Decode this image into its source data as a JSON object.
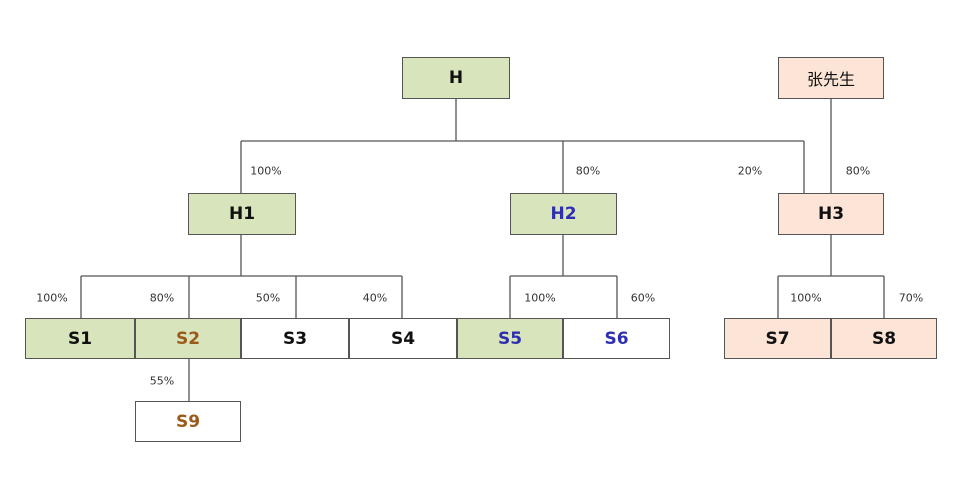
{
  "colors": {
    "green": "#d8e4bc",
    "peach": "#fce4d6",
    "white": "#ffffff",
    "brown": "#9c5a1a",
    "blue": "#2e2eb0",
    "black": "#111111",
    "line": "#555555"
  },
  "nodes": [
    {
      "id": "H",
      "label": "H",
      "fill": "green",
      "text": "black"
    },
    {
      "id": "Zhang",
      "label": "张先生",
      "fill": "peach",
      "text": "black"
    },
    {
      "id": "H1",
      "label": "H1",
      "fill": "green",
      "text": "black"
    },
    {
      "id": "H2",
      "label": "H2",
      "fill": "green",
      "text": "blue"
    },
    {
      "id": "H3",
      "label": "H3",
      "fill": "peach",
      "text": "black"
    },
    {
      "id": "S1",
      "label": "S1",
      "fill": "green",
      "text": "black"
    },
    {
      "id": "S2",
      "label": "S2",
      "fill": "green",
      "text": "brown"
    },
    {
      "id": "S3",
      "label": "S3",
      "fill": "white",
      "text": "black"
    },
    {
      "id": "S4",
      "label": "S4",
      "fill": "white",
      "text": "black"
    },
    {
      "id": "S5",
      "label": "S5",
      "fill": "green",
      "text": "blue"
    },
    {
      "id": "S6",
      "label": "S6",
      "fill": "white",
      "text": "blue"
    },
    {
      "id": "S7",
      "label": "S7",
      "fill": "peach",
      "text": "black"
    },
    {
      "id": "S8",
      "label": "S8",
      "fill": "peach",
      "text": "black"
    },
    {
      "id": "S9",
      "label": "S9",
      "fill": "white",
      "text": "brown"
    }
  ],
  "edges": [
    {
      "from": "H",
      "to": "H1",
      "label": "100%"
    },
    {
      "from": "H",
      "to": "H2",
      "label": "80%"
    },
    {
      "from": "H",
      "to": "H3",
      "label": "20%"
    },
    {
      "from": "Zhang",
      "to": "H3",
      "label": "80%"
    },
    {
      "from": "H1",
      "to": "S1",
      "label": "100%"
    },
    {
      "from": "H1",
      "to": "S2",
      "label": "80%"
    },
    {
      "from": "H1",
      "to": "S3",
      "label": "50%"
    },
    {
      "from": "H1",
      "to": "S4",
      "label": "40%"
    },
    {
      "from": "H2",
      "to": "S5",
      "label": "100%"
    },
    {
      "from": "H2",
      "to": "S6",
      "label": "60%"
    },
    {
      "from": "H3",
      "to": "S7",
      "label": "100%"
    },
    {
      "from": "H3",
      "to": "S8",
      "label": "70%"
    },
    {
      "from": "S2",
      "to": "S9",
      "label": "55%"
    }
  ]
}
